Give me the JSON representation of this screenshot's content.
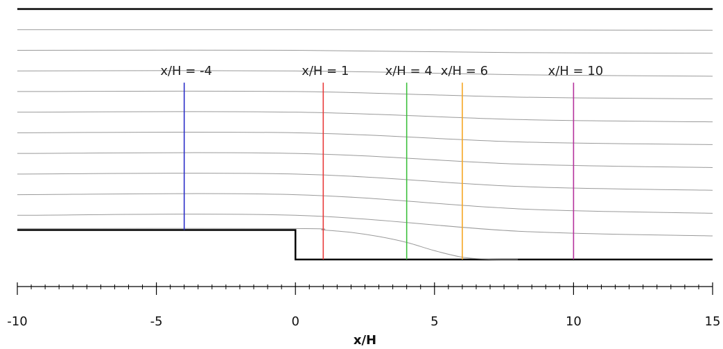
{
  "chart_data": {
    "type": "line",
    "title": "",
    "xlabel": "x/H",
    "ylabel": "",
    "xlim": [
      -10,
      15
    ],
    "ylim": [
      -1,
      8.5
    ],
    "grid": false,
    "legend": "none",
    "x_ticks": [
      -10,
      -5,
      0,
      5,
      10,
      15
    ],
    "x_tick_labels": [
      "-10",
      "-5",
      "0",
      "5",
      "10",
      "15"
    ],
    "minor_tick_step": 0.5,
    "walls": {
      "top_y": 8.5,
      "upper_floor_y": 1.0,
      "lower_floor_y": 0.0,
      "step_x": 0,
      "color": "#000000"
    },
    "streamlines": {
      "color": "#999999",
      "series": [
        {
          "x": [
            -10,
            0,
            8,
            15
          ],
          "y": [
            7.8,
            7.8,
            7.79,
            7.78
          ]
        },
        {
          "x": [
            -10,
            0,
            8,
            15
          ],
          "y": [
            7.1,
            7.1,
            7.02,
            7.0
          ]
        },
        {
          "x": [
            -10,
            0,
            8,
            15
          ],
          "y": [
            6.4,
            6.4,
            6.27,
            6.22
          ]
        },
        {
          "x": [
            -10,
            0,
            8,
            15
          ],
          "y": [
            5.7,
            5.7,
            5.51,
            5.45
          ]
        },
        {
          "x": [
            -10,
            0,
            8,
            15
          ],
          "y": [
            5.0,
            5.0,
            4.75,
            4.67
          ]
        },
        {
          "x": [
            -10,
            0,
            8,
            15
          ],
          "y": [
            4.3,
            4.3,
            3.99,
            3.9
          ]
        },
        {
          "x": [
            -10,
            0,
            8,
            15
          ],
          "y": [
            3.6,
            3.6,
            3.24,
            3.12
          ]
        },
        {
          "x": [
            -10,
            0,
            8,
            15
          ],
          "y": [
            2.9,
            2.9,
            2.48,
            2.35
          ]
        },
        {
          "x": [
            -10,
            0,
            8,
            15
          ],
          "y": [
            2.2,
            2.2,
            1.72,
            1.57
          ]
        },
        {
          "x": [
            -10,
            0,
            8,
            15
          ],
          "y": [
            1.5,
            1.5,
            0.96,
            0.8
          ]
        },
        {
          "x": [
            -10,
            0,
            1,
            2,
            3,
            4,
            5,
            6,
            7,
            8
          ],
          "y": [
            1.05,
            1.05,
            1.0,
            0.92,
            0.78,
            0.58,
            0.3,
            0.08,
            0.01,
            0.0
          ]
        }
      ]
    },
    "stations": [
      {
        "label": "x/H = -4",
        "x": -4,
        "y_bottom": 1.0,
        "y_top": 6.0,
        "color": "#2c2fc9"
      },
      {
        "label": "x/H = 1",
        "x": 1,
        "y_bottom": 0.0,
        "y_top": 6.0,
        "color": "#e83a3a"
      },
      {
        "label": "x/H = 4",
        "x": 4,
        "y_bottom": 0.0,
        "y_top": 6.0,
        "color": "#3cbf3c"
      },
      {
        "label": "x/H = 6",
        "x": 6,
        "y_bottom": 0.0,
        "y_top": 6.0,
        "color": "#f5a623"
      },
      {
        "label": "x/H = 10",
        "x": 10,
        "y_bottom": 0.0,
        "y_top": 6.0,
        "color": "#b5309c"
      }
    ]
  }
}
